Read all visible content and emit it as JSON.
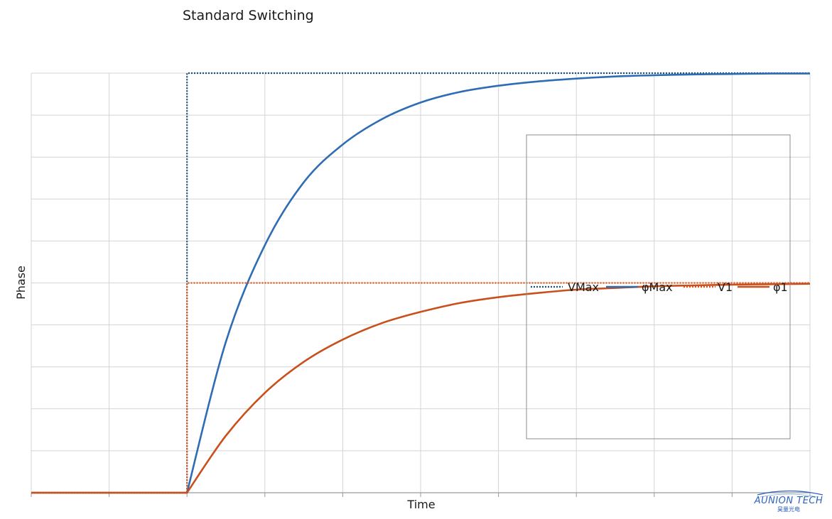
{
  "chart_data": {
    "type": "line",
    "title": "Standard Switching",
    "xlabel": "Time",
    "ylabel": "Phase",
    "xlim": [
      0,
      10
    ],
    "ylim": [
      0,
      10
    ],
    "grid": true,
    "legend_position": "center-right",
    "x_ticks": [
      0,
      1,
      2,
      3,
      4,
      5,
      6,
      7,
      8,
      9,
      10
    ],
    "y_ticks": [
      0,
      1,
      2,
      3,
      4,
      5,
      6,
      7,
      8,
      9,
      10
    ],
    "series": [
      {
        "name": "VMax",
        "style": "dotted",
        "color": "#1f4e79",
        "x": [
          0,
          2,
          2,
          10
        ],
        "y": [
          0,
          0,
          10,
          10
        ]
      },
      {
        "name": "φMax",
        "style": "solid",
        "color": "#2e6db4",
        "x": [
          0,
          2,
          2.5,
          3,
          3.5,
          4,
          4.5,
          5,
          5.5,
          6,
          6.5,
          7,
          7.5,
          8,
          8.5,
          9,
          9.5,
          10
        ],
        "y": [
          0,
          0,
          3.6,
          5.9,
          7.4,
          8.3,
          8.9,
          9.3,
          9.55,
          9.7,
          9.8,
          9.87,
          9.92,
          9.95,
          9.97,
          9.98,
          9.99,
          9.99
        ]
      },
      {
        "name": "V1",
        "style": "dotted",
        "color": "#d9531e",
        "x": [
          0,
          2,
          2,
          10
        ],
        "y": [
          0,
          0,
          5,
          5
        ]
      },
      {
        "name": "φ1",
        "style": "solid",
        "color": "#c9501c",
        "x": [
          0,
          2,
          2.5,
          3,
          3.5,
          4,
          4.5,
          5,
          5.5,
          6,
          6.5,
          7,
          7.5,
          8,
          8.5,
          9,
          9.5,
          10
        ],
        "y": [
          0,
          0,
          1.36,
          2.38,
          3.12,
          3.65,
          4.04,
          4.31,
          4.52,
          4.66,
          4.76,
          4.84,
          4.88,
          4.92,
          4.94,
          4.96,
          4.97,
          4.98
        ]
      }
    ]
  },
  "logo": {
    "main": "AUNION TECH",
    "sub": "昊量光电"
  }
}
